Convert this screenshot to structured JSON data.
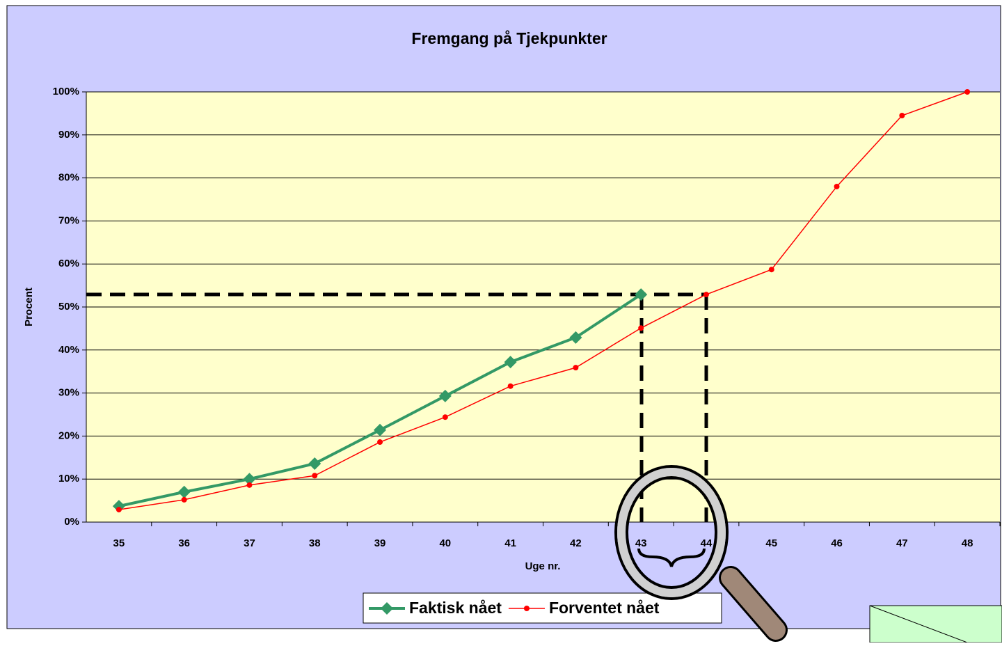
{
  "chart_data": {
    "type": "line",
    "title": "Fremgang på Tjekpunkter",
    "x_label": "Uge nr.",
    "y_label": "Procent",
    "categories": [
      "35",
      "36",
      "37",
      "38",
      "39",
      "40",
      "41",
      "42",
      "43",
      "44",
      "45",
      "46",
      "47",
      "48"
    ],
    "series": [
      {
        "name": "Faktisk nået",
        "color": "#339966",
        "values": [
          3.7,
          7.0,
          10.0,
          13.6,
          21.4,
          29.3,
          37.2,
          42.9,
          52.9,
          null,
          null,
          null,
          null,
          null
        ]
      },
      {
        "name": "Forventet nået",
        "color": "#ff0000",
        "values": [
          2.9,
          5.2,
          8.6,
          10.8,
          18.6,
          24.4,
          31.6,
          35.9,
          45.1,
          52.9,
          58.7,
          78.0,
          94.5,
          100
        ]
      }
    ],
    "ylim": [
      0,
      100
    ],
    "yticks": [
      {
        "value": 0,
        "label": "0%"
      },
      {
        "value": 10,
        "label": "10%"
      },
      {
        "value": 20,
        "label": "20%"
      },
      {
        "value": 30,
        "label": "30%"
      },
      {
        "value": 40,
        "label": "40%"
      },
      {
        "value": 50,
        "label": "50%"
      },
      {
        "value": 60,
        "label": "60%"
      },
      {
        "value": 70,
        "label": "70%"
      },
      {
        "value": 80,
        "label": "80%"
      },
      {
        "value": 90,
        "label": "90%"
      },
      {
        "value": 100,
        "label": "100%"
      }
    ],
    "grid": true,
    "legend": "bottom"
  }
}
